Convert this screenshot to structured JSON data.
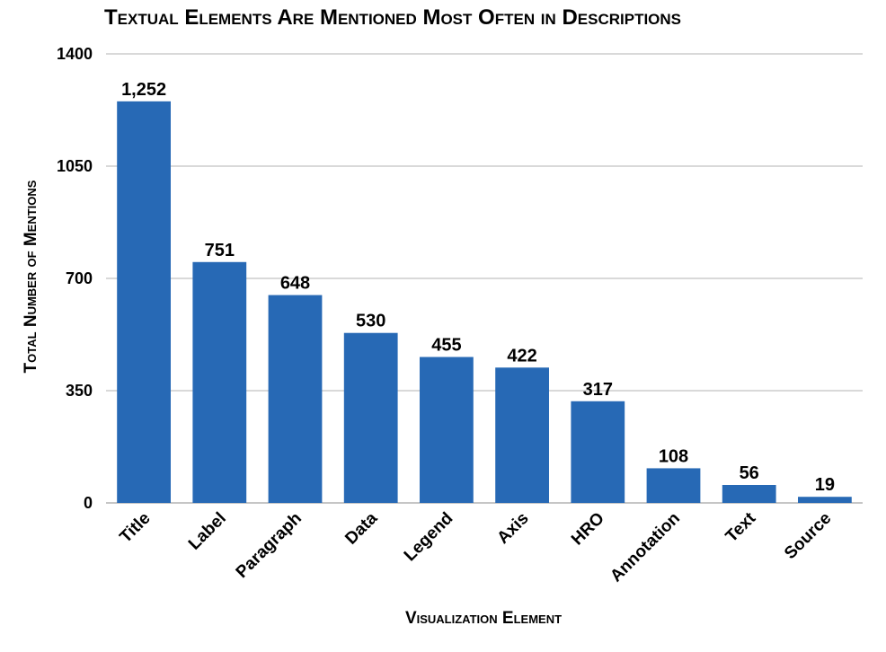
{
  "chart_data": {
    "type": "bar",
    "title": "Textual Elements Are Mentioned Most Often in Descriptions",
    "xlabel": "Visualization Element",
    "ylabel": "Total Number of Mentions",
    "categories": [
      "Title",
      "Label",
      "Paragraph",
      "Data",
      "Legend",
      "Axis",
      "HRO",
      "Annotation",
      "Text",
      "Source"
    ],
    "values": [
      1252,
      751,
      648,
      530,
      455,
      422,
      317,
      108,
      56,
      19
    ],
    "value_labels": [
      "1,252",
      "751",
      "648",
      "530",
      "455",
      "422",
      "317",
      "108",
      "56",
      "19"
    ],
    "yticks": [
      0,
      350,
      700,
      1050,
      1400
    ],
    "ytick_labels": [
      "0",
      "350",
      "700",
      "1050",
      "1400"
    ],
    "ylim": [
      0,
      1400
    ],
    "grid": true,
    "legend": "none",
    "bar_color": "#2769b5"
  }
}
